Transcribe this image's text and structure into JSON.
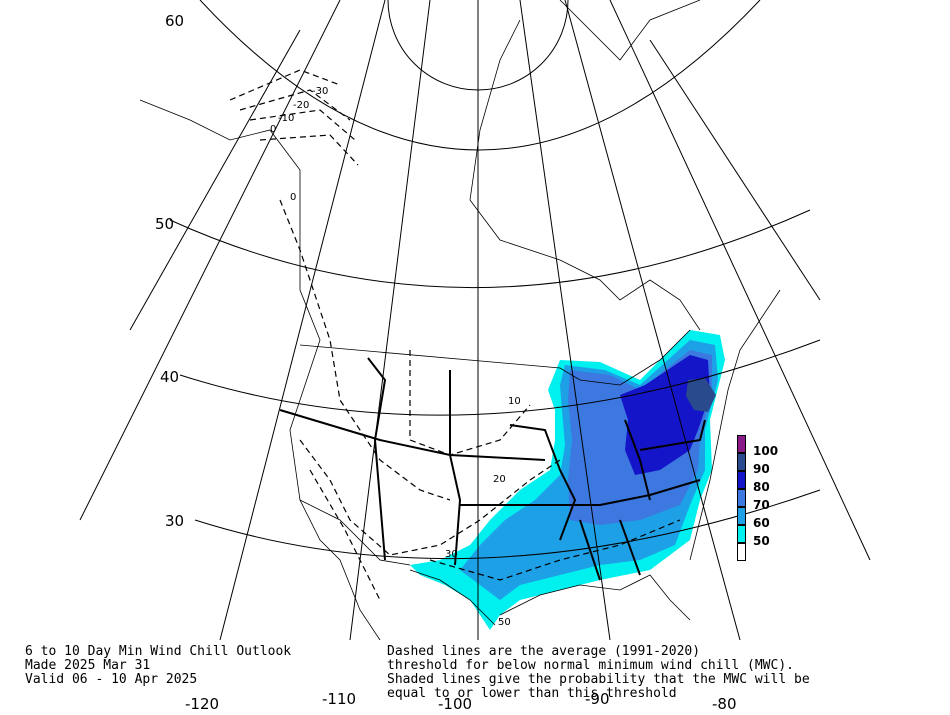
{
  "footer": {
    "title_line1": "6 to 10 Day Min Wind Chill Outlook",
    "title_line2": "Made 2025 Mar 31",
    "title_line3": "Valid 06 - 10 Apr 2025",
    "note_line1": "Dashed lines are the average (1991-2020)",
    "note_line2": "threshold for below normal minimum wind chill (MWC).",
    "note_line3": "Shaded lines give the probability that the MWC will be",
    "note_line4": "equal to or lower than this threshold"
  },
  "latitude_labels": [
    "60",
    "50",
    "40",
    "30"
  ],
  "longitude_labels": [
    "-120",
    "-110",
    "-100",
    "-90",
    "-80"
  ],
  "legend": {
    "items": [
      {
        "label": "100",
        "color": "#8b1a89"
      },
      {
        "label": "90",
        "color": "#2a4a8e"
      },
      {
        "label": "80",
        "color": "#1414c8"
      },
      {
        "label": "70",
        "color": "#3c78e0"
      },
      {
        "label": "60",
        "color": "#1ea0e6"
      },
      {
        "label": "50",
        "color": "#00f0f0"
      },
      {
        "label": "",
        "color": "#ffffff"
      }
    ]
  },
  "contour_labels": [
    "-30",
    "-20",
    "-10",
    "0",
    "0",
    "10",
    "20",
    "30",
    "50"
  ],
  "colors": {
    "p50": "#00f0f0",
    "p60": "#1ea0e6",
    "p70": "#3c78e0",
    "p80": "#1414c8",
    "p90": "#2a4a8e"
  }
}
